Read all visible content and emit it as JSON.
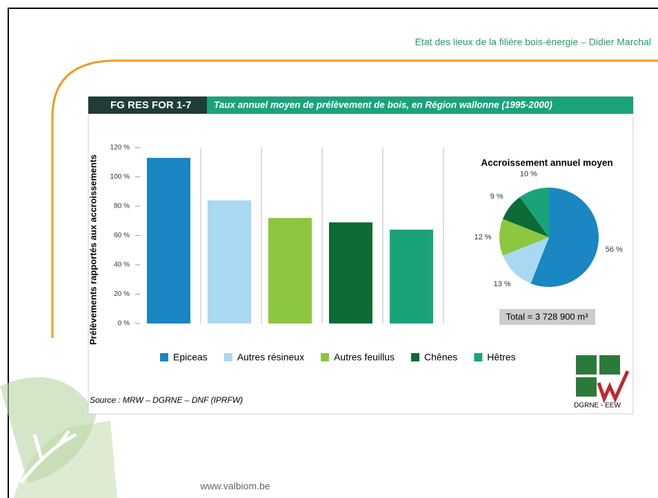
{
  "header": "Etat des lieux de la filière bois-énergie – Didier Marchal",
  "figure_code": "FG RES FOR 1-7",
  "figure_title": "Taux annuel moyen de prélèvement de bois, en Région wallonne (1995-2000)",
  "source": "Source : MRW – DGRNE – DNF (IPRFW)",
  "logo_text": "DGRNE - EEW",
  "footer": "www.valbiom.be",
  "chart_data": [
    {
      "type": "bar",
      "ylabel": "Prélèvements rapportés aux accroissements",
      "categories": [
        "Epiceas",
        "Autres résineux",
        "Autres feuillus",
        "Chênes",
        "Hêtres"
      ],
      "values": [
        113,
        84,
        72,
        69,
        64
      ],
      "colors": [
        "#1a86c2",
        "#a9d9f2",
        "#8dc63f",
        "#0c6b36",
        "#1aa37a"
      ],
      "ylim": [
        0,
        120
      ],
      "yticks": [
        {
          "value": 0,
          "label": "0 %"
        },
        {
          "value": 20,
          "label": "20 %"
        },
        {
          "value": 40,
          "label": "40 %"
        },
        {
          "value": 60,
          "label": "60 %"
        },
        {
          "value": 80,
          "label": "80 %"
        },
        {
          "value": 100,
          "label": "100 %"
        },
        {
          "value": 120,
          "label": "120 %"
        }
      ],
      "grid": true,
      "legend": "bottom"
    },
    {
      "type": "pie",
      "title": "Accroissement annuel moyen",
      "values": [
        56,
        13,
        12,
        9,
        10
      ],
      "value_labels": [
        "56 %",
        "13 %",
        "12 %",
        "9 %",
        "10 %"
      ],
      "colors": [
        "#1a86c2",
        "#a9d9f2",
        "#8dc63f",
        "#0c6b36",
        "#1aa37a"
      ],
      "annotation": "Total = 3 728 900 m³"
    }
  ]
}
